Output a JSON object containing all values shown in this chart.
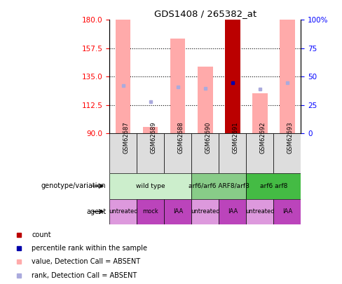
{
  "title": "GDS1408 / 265382_at",
  "samples": [
    "GSM62687",
    "GSM62689",
    "GSM62688",
    "GSM62690",
    "GSM62691",
    "GSM62692",
    "GSM62693"
  ],
  "ylim_left": [
    90,
    180
  ],
  "yticks_left": [
    90,
    112.5,
    135,
    157.5,
    180
  ],
  "ylim_right": [
    0,
    100
  ],
  "yticks_right": [
    0,
    25,
    50,
    75,
    100
  ],
  "value_bars": [
    180,
    95,
    165,
    143,
    180,
    122,
    180
  ],
  "rank_marks": [
    128,
    115,
    127,
    126,
    130,
    125,
    130
  ],
  "value_bar_colors": [
    "#ffaaaa",
    "#ffaaaa",
    "#ffaaaa",
    "#ffaaaa",
    "#bb0000",
    "#ffaaaa",
    "#ffaaaa"
  ],
  "rank_mark_colors": [
    "#aaaadd",
    "#aaaadd",
    "#aaaadd",
    "#aaaadd",
    "#0000aa",
    "#aaaadd",
    "#aaaadd"
  ],
  "geno_groups": [
    {
      "label": "wild type",
      "cols": [
        0,
        1,
        2
      ],
      "color": "#cceecc"
    },
    {
      "label": "arf6/arf6 ARF8/arf8",
      "cols": [
        3,
        4
      ],
      "color": "#88cc88"
    },
    {
      "label": "arf6 arf8",
      "cols": [
        5,
        6
      ],
      "color": "#44bb44"
    }
  ],
  "agent_labels": [
    "untreated",
    "mock",
    "IAA",
    "untreated",
    "IAA",
    "untreated",
    "IAA"
  ],
  "agent_colors": [
    "#dd99dd",
    "#bb44bb",
    "#bb44bb",
    "#dd99dd",
    "#bb44bb",
    "#dd99dd",
    "#bb44bb"
  ],
  "legend_items": [
    {
      "label": "count",
      "color": "#bb0000"
    },
    {
      "label": "percentile rank within the sample",
      "color": "#0000aa"
    },
    {
      "label": "value, Detection Call = ABSENT",
      "color": "#ffaaaa"
    },
    {
      "label": "rank, Detection Call = ABSENT",
      "color": "#aaaadd"
    }
  ]
}
